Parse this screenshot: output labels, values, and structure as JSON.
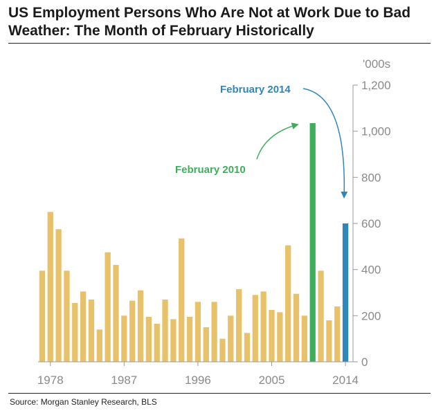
{
  "chart_data": {
    "type": "bar",
    "title": "US Employment Persons Who Are Not at Work Due to Bad Weather: The Month of February Historically",
    "unit_label": "'000s",
    "source": "Source: Morgan Stanley Research, BLS",
    "x": [
      1977,
      1978,
      1979,
      1980,
      1981,
      1982,
      1983,
      1984,
      1985,
      1986,
      1987,
      1988,
      1989,
      1990,
      1991,
      1992,
      1993,
      1994,
      1995,
      1996,
      1997,
      1998,
      1999,
      2000,
      2001,
      2002,
      2003,
      2004,
      2005,
      2006,
      2007,
      2008,
      2009,
      2010,
      2011,
      2012,
      2013,
      2014
    ],
    "values": [
      395,
      650,
      575,
      395,
      255,
      305,
      270,
      140,
      475,
      420,
      200,
      265,
      310,
      195,
      165,
      270,
      185,
      535,
      195,
      260,
      150,
      260,
      100,
      200,
      315,
      125,
      290,
      305,
      225,
      215,
      505,
      295,
      200,
      1035,
      395,
      180,
      240,
      600
    ],
    "x_tick_labels": [
      "1978",
      "1987",
      "1996",
      "2005",
      "2014"
    ],
    "x_tick_values": [
      1978,
      1987,
      1996,
      2005,
      2014
    ],
    "y_tick_labels": [
      "0",
      "200",
      "400",
      "600",
      "800",
      "1,000",
      "1,200"
    ],
    "y_tick_values": [
      0,
      200,
      400,
      600,
      800,
      1000,
      1200
    ],
    "ylim": [
      0,
      1200
    ],
    "colors": {
      "default": "#e8c26b",
      "feb2010": "#3fae5b",
      "feb2014": "#2f86b8",
      "axis": "#9a9a9a"
    },
    "annotations": [
      {
        "label": "February 2010",
        "target_x": 2010,
        "color": "#3fae5b"
      },
      {
        "label": "February 2014",
        "target_x": 2014,
        "color": "#2f86b8"
      }
    ],
    "grid": false,
    "legend": "none"
  }
}
